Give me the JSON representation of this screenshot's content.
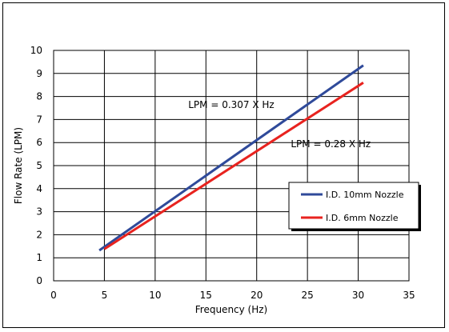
{
  "chart_data": {
    "type": "line",
    "xlabel": "Frequency (Hz)",
    "ylabel": "Flow Rate (LPM)",
    "xlim": [
      0,
      35
    ],
    "ylim": [
      0,
      10
    ],
    "x_ticks": [
      "0",
      "5",
      "10",
      "15",
      "20",
      "25",
      "30",
      "35"
    ],
    "y_ticks": [
      "0",
      "1",
      "2",
      "3",
      "4",
      "5",
      "6",
      "7",
      "8",
      "9",
      "10"
    ],
    "grid": true,
    "legend_position": "right",
    "series": [
      {
        "name": "I.D. 10mm Nozzle",
        "color": "#2f4a9a",
        "x": [
          4.5,
          30.5
        ],
        "y": [
          1.32,
          9.35
        ]
      },
      {
        "name": "I.D. 6mm Nozzle",
        "color": "#e8231f",
        "x": [
          5.0,
          30.5
        ],
        "y": [
          1.38,
          8.6
        ]
      }
    ],
    "annotations": [
      {
        "text": "LPM = 0.307 X Hz",
        "x": 17.5,
        "y": 7.5
      },
      {
        "text": "LPM = 0.28 X Hz",
        "x": 27.3,
        "y": 5.8
      }
    ]
  }
}
